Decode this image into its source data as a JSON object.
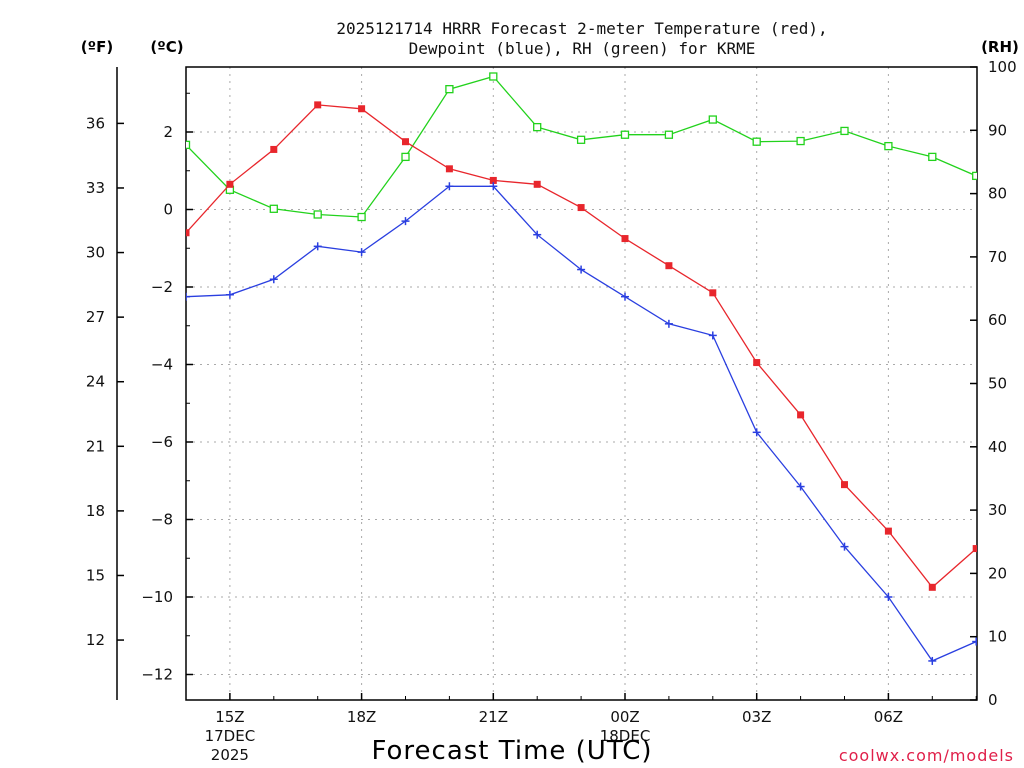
{
  "title": {
    "line1": "2025121714 HRRR Forecast 2-meter Temperature (red),",
    "line2": "Dewpoint (blue), RH (green) for KRME"
  },
  "axes": {
    "fahrenheit_unit": "(ºF)",
    "celsius_unit": "(ºC)",
    "rh_unit": "(RH)",
    "xlabel": "Forecast Time (UTC)",
    "celsius_ticks": [
      "2",
      "0",
      "−2",
      "−4",
      "−6",
      "−8",
      "−10",
      "−12"
    ],
    "fahrenheit_ticks": [
      "36",
      "33",
      "30",
      "27",
      "24",
      "21",
      "18",
      "15",
      "12"
    ],
    "rh_ticks": [
      "100",
      "90",
      "80",
      "70",
      "60",
      "50",
      "40",
      "30",
      "20",
      "10",
      "0"
    ],
    "x_ticks": [
      {
        "label": "15Z",
        "sub1": "17DEC",
        "sub2": "2025"
      },
      {
        "label": "18Z",
        "sub1": "",
        "sub2": ""
      },
      {
        "label": "21Z",
        "sub1": "",
        "sub2": ""
      },
      {
        "label": "00Z",
        "sub1": "18DEC",
        "sub2": ""
      },
      {
        "label": "03Z",
        "sub1": "",
        "sub2": ""
      },
      {
        "label": "06Z",
        "sub1": "",
        "sub2": ""
      }
    ]
  },
  "credit": "coolwx.com/models",
  "colors": {
    "temperature": "#e8262c",
    "dewpoint": "#2a3fe0",
    "rh": "#22d21c"
  },
  "chart_data": {
    "type": "line",
    "x_hours_from_14Z": [
      0,
      1,
      2,
      3,
      4,
      5,
      6,
      7,
      8,
      9,
      10,
      11,
      12,
      13,
      14,
      15,
      16,
      17,
      18
    ],
    "x_unit": "hours after 2025-12-17 14Z",
    "ylim_celsius": [
      -12.7,
      3.6
    ],
    "ylim_rh": [
      0,
      100
    ],
    "series": [
      {
        "name": "2-meter Temperature (°C)",
        "color_key": "temperature",
        "marker": "filled-square",
        "axis": "celsius",
        "values": [
          -0.6,
          0.65,
          1.55,
          2.7,
          2.6,
          1.75,
          1.05,
          0.75,
          0.65,
          0.05,
          -0.75,
          -1.45,
          -2.15,
          -3.95,
          -5.3,
          -7.1,
          -8.3,
          -9.75,
          -8.75
        ]
      },
      {
        "name": "Dewpoint (°C)",
        "color_key": "dewpoint",
        "marker": "plus",
        "axis": "celsius",
        "values": [
          -2.25,
          -2.2,
          -1.8,
          -0.95,
          -1.1,
          -0.3,
          0.6,
          0.6,
          -0.65,
          -1.55,
          -2.25,
          -2.95,
          -3.25,
          -5.75,
          -7.15,
          -8.7,
          -10.0,
          -11.65,
          -11.15
        ]
      },
      {
        "name": "RH (%)",
        "color_key": "rh",
        "marker": "open-square",
        "axis": "rh",
        "values": [
          87.7,
          80.6,
          77.6,
          76.7,
          76.3,
          85.8,
          96.5,
          98.5,
          90.5,
          88.5,
          89.3,
          89.3,
          91.7,
          88.2,
          88.3,
          89.9,
          87.5,
          85.8,
          82.8
        ]
      }
    ]
  }
}
